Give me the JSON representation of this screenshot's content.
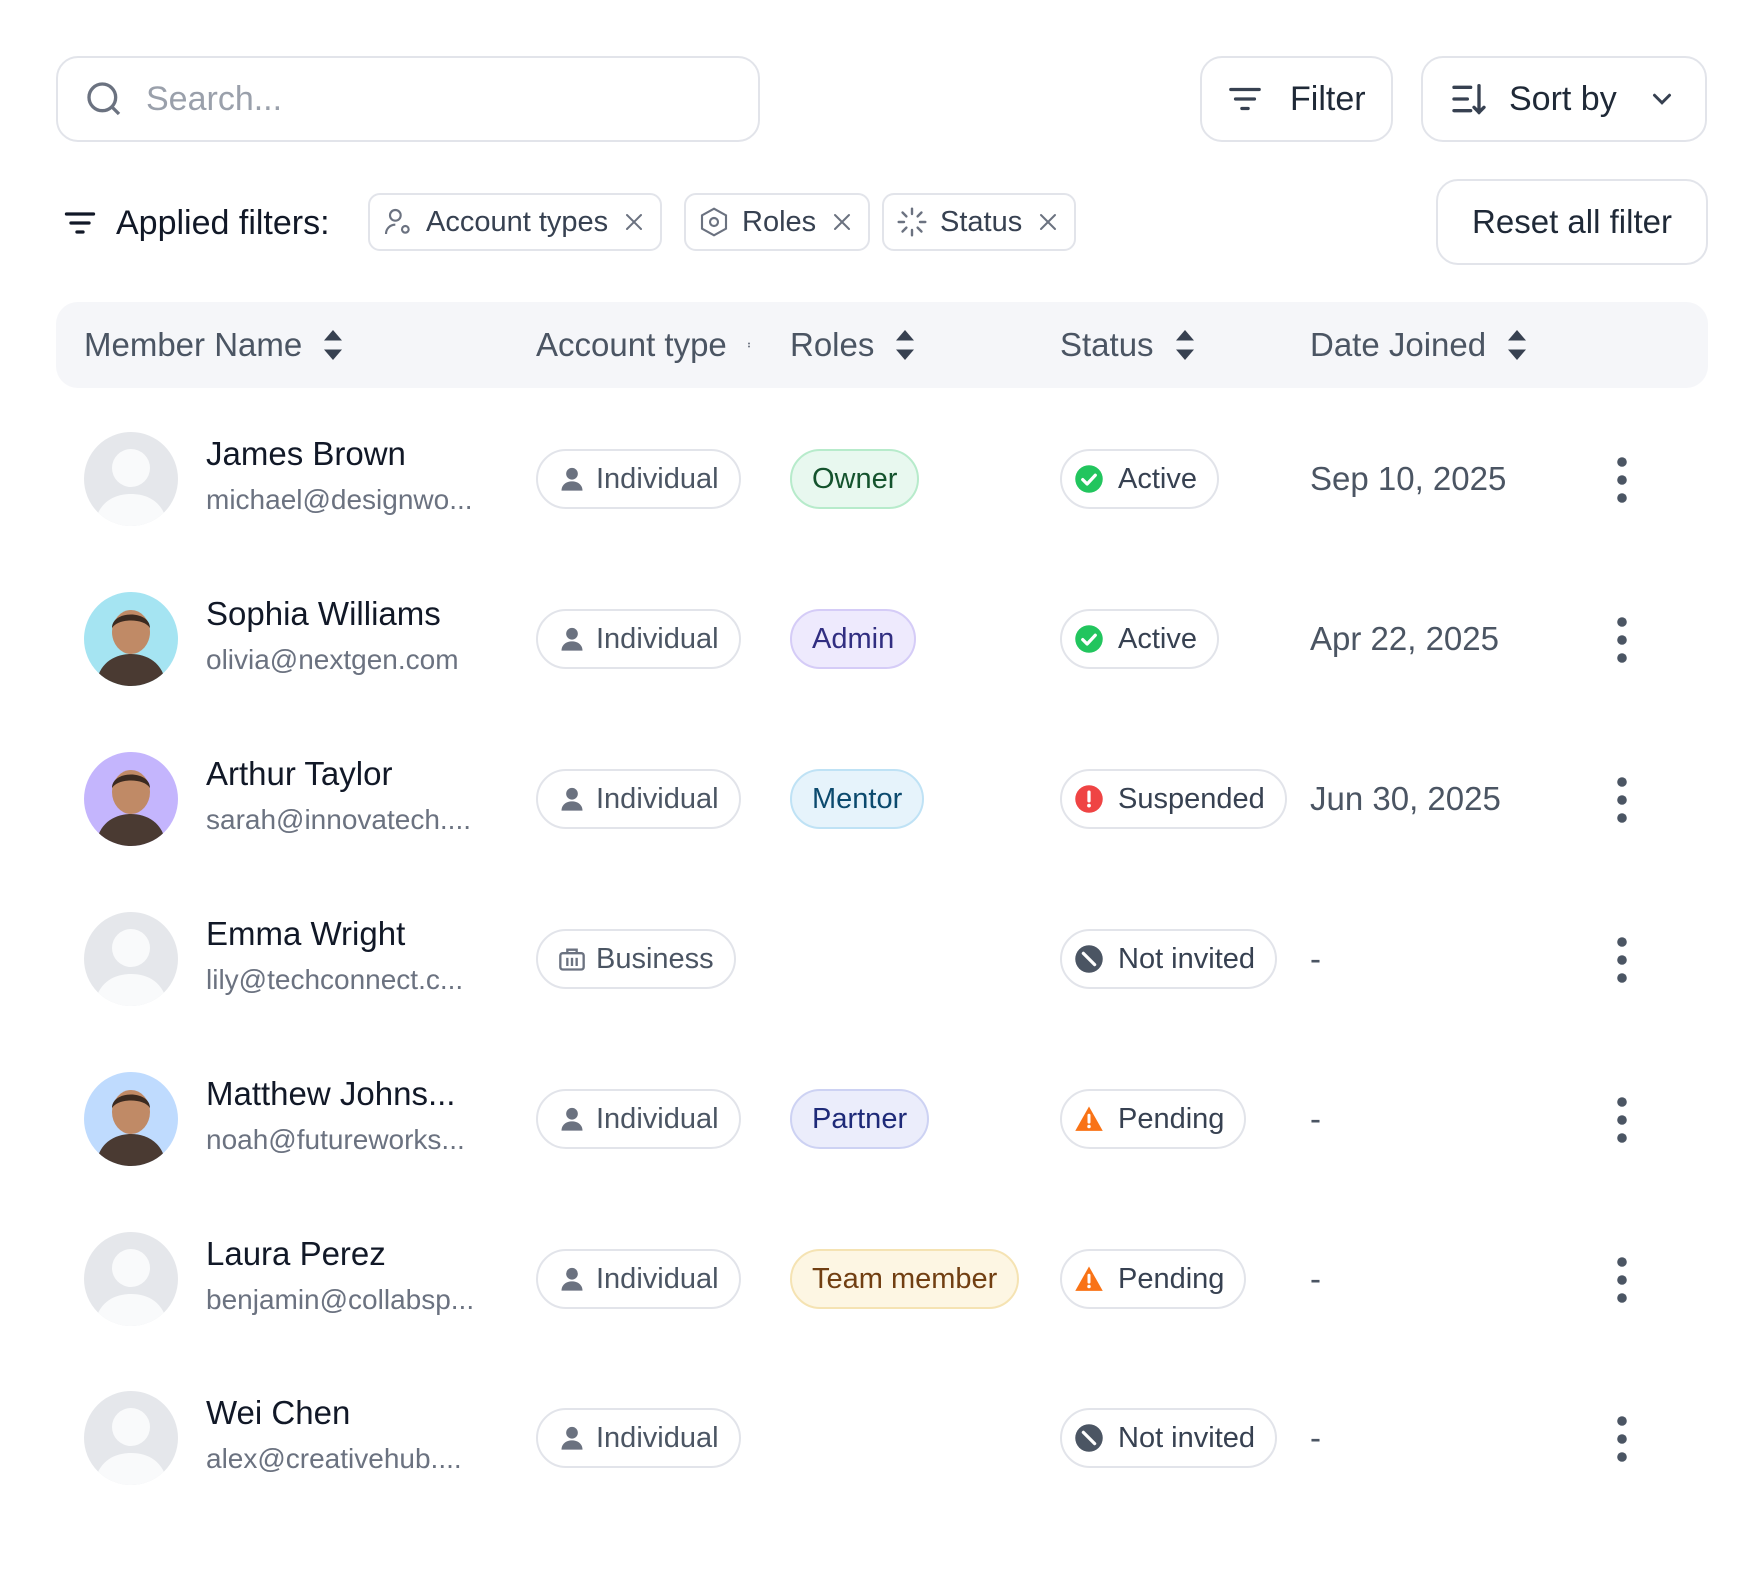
{
  "search": {
    "placeholder": "Search..."
  },
  "toolbar": {
    "filter_label": "Filter",
    "sort_label": "Sort by"
  },
  "applied_filters": {
    "label": "Applied filters:",
    "chips": [
      "Account types",
      "Roles",
      "Status"
    ],
    "reset_label": "Reset all filter"
  },
  "table": {
    "columns": [
      "Member Name",
      "Account type",
      "Roles",
      "Status",
      "Date Joined"
    ],
    "rows": [
      {
        "name": "James Brown",
        "email": "michael@designwo...",
        "account_type": "Individual",
        "role": "Owner",
        "status": "Active",
        "date": "Sep 10, 2025",
        "avatar": "placeholder"
      },
      {
        "name": "Sophia Williams",
        "email": "olivia@nextgen.com",
        "account_type": "Individual",
        "role": "Admin",
        "status": "Active",
        "date": "Apr 22, 2025",
        "avatar": "photo"
      },
      {
        "name": "Arthur Taylor",
        "email": "sarah@innovatech....",
        "account_type": "Individual",
        "role": "Mentor",
        "status": "Suspended",
        "date": "Jun 30, 2025",
        "avatar": "photo"
      },
      {
        "name": "Emma Wright",
        "email": "lily@techconnect.c...",
        "account_type": "Business",
        "role": "",
        "status": "Not invited",
        "date": "-",
        "avatar": "placeholder"
      },
      {
        "name": "Matthew Johns...",
        "email": "noah@futureworks...",
        "account_type": "Individual",
        "role": "Partner",
        "status": "Pending",
        "date": "-",
        "avatar": "photo"
      },
      {
        "name": "Laura Perez",
        "email": "benjamin@collabsp...",
        "account_type": "Individual",
        "role": "Team member",
        "status": "Pending",
        "date": "-",
        "avatar": "placeholder"
      },
      {
        "name": "Wei Chen",
        "email": "alex@creativehub....",
        "account_type": "Individual",
        "role": "",
        "status": "Not invited",
        "date": "-",
        "avatar": "placeholder"
      }
    ]
  },
  "colors": {
    "owner": "#e8f8ef",
    "admin": "#eeeafd",
    "mentor": "#e6f3fb",
    "partner": "#ebedfb",
    "team_member": "#fdf6e3",
    "active": "#22c55e",
    "suspended": "#ef4444",
    "pending": "#f97316",
    "not_invited": "#4b5563"
  },
  "icons": [
    "search-icon",
    "filter-icon",
    "sort-icon",
    "chevron-down-icon",
    "user-gear-icon",
    "hexagon-icon",
    "loader-icon",
    "close-icon",
    "sort-arrows-icon",
    "user-icon",
    "briefcase-icon",
    "check-circle-icon",
    "alert-circle-icon",
    "ban-icon",
    "warning-icon",
    "more-vertical-icon"
  ]
}
